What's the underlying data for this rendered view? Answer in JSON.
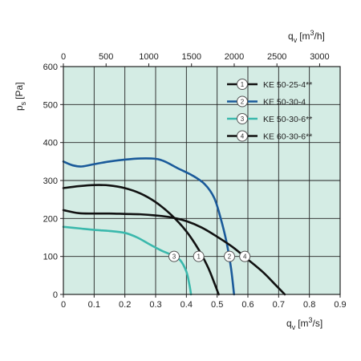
{
  "chart_data": {
    "type": "line",
    "plot_background": "#d4ece4",
    "grid": true,
    "legend_position": "top-right",
    "x_bottom": {
      "unit_symbol": "q",
      "unit_sub": "v",
      "unit_text": "[m",
      "unit_sup": "3",
      "unit_end": "/s]",
      "range": [
        0,
        0.9
      ],
      "ticks": [
        0,
        0.1,
        0.2,
        0.3,
        0.4,
        0.5,
        0.6,
        0.7,
        0.8,
        0.9
      ],
      "tick_labels": [
        "0",
        "0.1",
        "0.2",
        "0.3",
        "0.4",
        "0.5",
        "0.6",
        "0.7",
        "0.8",
        "0.9"
      ]
    },
    "x_top": {
      "unit_symbol": "q",
      "unit_sub": "v",
      "unit_text": "[m",
      "unit_sup": "3",
      "unit_end": "/h]",
      "range": [
        0,
        3240
      ],
      "ticks": [
        0,
        500,
        1000,
        1500,
        2000,
        2500,
        3000
      ],
      "tick_labels": [
        "0",
        "500",
        "1000",
        "1500",
        "2000",
        "2500",
        "3000"
      ]
    },
    "y": {
      "unit_symbol": "p",
      "unit_sub": "s",
      "unit_text": "[Pa]",
      "range": [
        0,
        600
      ],
      "ticks": [
        0,
        100,
        200,
        300,
        400,
        500,
        600
      ],
      "tick_labels": [
        "0",
        "100",
        "200",
        "300",
        "400",
        "500",
        "600"
      ]
    },
    "series": [
      {
        "name": "KE 50-25-4**",
        "marker": "1",
        "color": "#111111",
        "marker_at": [
          0.44,
          100
        ],
        "points": [
          [
            0,
            280
          ],
          [
            0.05,
            285
          ],
          [
            0.1,
            288
          ],
          [
            0.15,
            287
          ],
          [
            0.2,
            280
          ],
          [
            0.25,
            266
          ],
          [
            0.3,
            243
          ],
          [
            0.35,
            210
          ],
          [
            0.4,
            166
          ],
          [
            0.44,
            118
          ],
          [
            0.47,
            72
          ],
          [
            0.49,
            32
          ],
          [
            0.505,
            0
          ]
        ]
      },
      {
        "name": "KE 50-30-4",
        "marker": "2",
        "color": "#1a5a9a",
        "marker_at": [
          0.54,
          100
        ],
        "points": [
          [
            0,
            350
          ],
          [
            0.03,
            340
          ],
          [
            0.06,
            337
          ],
          [
            0.1,
            343
          ],
          [
            0.15,
            350
          ],
          [
            0.2,
            355
          ],
          [
            0.25,
            358
          ],
          [
            0.3,
            357
          ],
          [
            0.33,
            350
          ],
          [
            0.37,
            333
          ],
          [
            0.42,
            313
          ],
          [
            0.46,
            290
          ],
          [
            0.49,
            255
          ],
          [
            0.51,
            205
          ],
          [
            0.53,
            140
          ],
          [
            0.545,
            70
          ],
          [
            0.555,
            0
          ]
        ]
      },
      {
        "name": "KE 50-30-6**",
        "marker": "3",
        "color": "#3ab8ac",
        "marker_at": [
          0.36,
          100
        ],
        "points": [
          [
            0,
            178
          ],
          [
            0.05,
            174
          ],
          [
            0.1,
            170
          ],
          [
            0.15,
            167
          ],
          [
            0.2,
            162
          ],
          [
            0.24,
            150
          ],
          [
            0.28,
            132
          ],
          [
            0.32,
            115
          ],
          [
            0.355,
            103
          ],
          [
            0.38,
            90
          ],
          [
            0.4,
            60
          ],
          [
            0.41,
            25
          ],
          [
            0.415,
            0
          ]
        ]
      },
      {
        "name": "KE 60-30-6**",
        "marker": "4",
        "color": "#111111",
        "marker_at": [
          0.59,
          100
        ],
        "points": [
          [
            0,
            222
          ],
          [
            0.05,
            214
          ],
          [
            0.1,
            213
          ],
          [
            0.15,
            213
          ],
          [
            0.2,
            212
          ],
          [
            0.25,
            211
          ],
          [
            0.3,
            208
          ],
          [
            0.35,
            203
          ],
          [
            0.4,
            193
          ],
          [
            0.45,
            176
          ],
          [
            0.5,
            152
          ],
          [
            0.55,
            125
          ],
          [
            0.6,
            92
          ],
          [
            0.65,
            58
          ],
          [
            0.69,
            25
          ],
          [
            0.72,
            0
          ]
        ]
      }
    ]
  }
}
